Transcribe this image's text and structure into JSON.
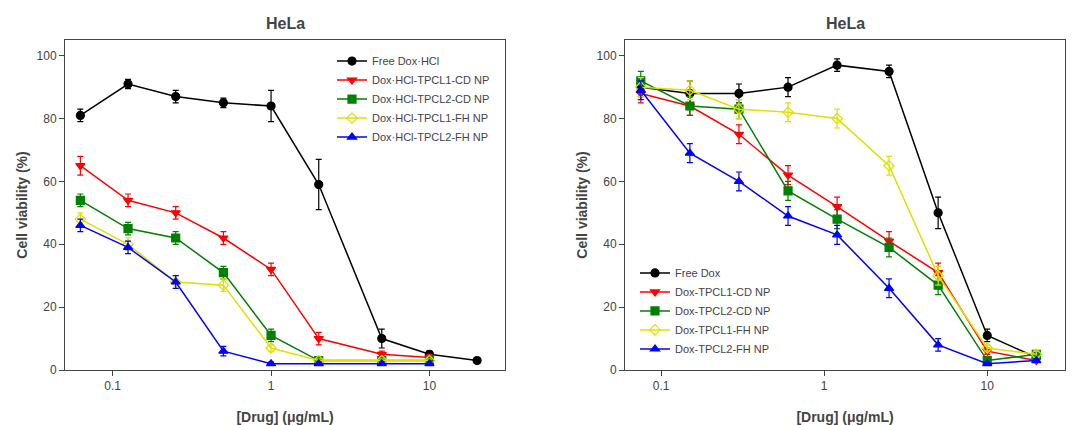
{
  "chart_data": [
    {
      "type": "line",
      "title": "HeLa",
      "xlabel": "[Drug] (μg/mL)",
      "ylabel": "Cell viability (%)",
      "log": "x",
      "grid": false,
      "legend": "upper right",
      "xlim": [
        0.05,
        30
      ],
      "ylim": [
        0,
        105
      ],
      "xticks": [
        0.1,
        1,
        10
      ],
      "yticks": [
        0,
        20,
        40,
        60,
        80,
        100
      ],
      "series": [
        {
          "name": "Free Dox·HCl",
          "color": "black",
          "marker": "circle",
          "x": [
            0.0625,
            0.125,
            0.25,
            0.5,
            1.0,
            2.0,
            5.0,
            10.0,
            20.0
          ],
          "values": [
            81,
            91,
            87,
            85,
            84,
            59,
            10,
            5,
            3
          ],
          "errors": [
            2,
            1.5,
            2,
            1.5,
            5,
            8,
            3,
            1,
            0.5
          ]
        },
        {
          "name": "Dox·HCl-TPCL1-CD NP",
          "color": "red",
          "marker": "triangle-down",
          "x": [
            0.0625,
            0.125,
            0.25,
            0.5,
            1.0,
            2.0,
            5.0,
            10.0
          ],
          "values": [
            65,
            54,
            50,
            42,
            32,
            10,
            5,
            4
          ],
          "errors": [
            3,
            2,
            2,
            2,
            2,
            2,
            1,
            1
          ]
        },
        {
          "name": "Dox·HCl-TPCL2-CD NP",
          "color": "green",
          "marker": "square",
          "x": [
            0.0625,
            0.125,
            0.25,
            0.5,
            1.0,
            2.0,
            5.0,
            10.0
          ],
          "values": [
            54,
            45,
            42,
            31,
            11,
            3,
            3,
            3
          ],
          "errors": [
            2,
            2,
            2,
            2,
            2,
            1,
            0.5,
            0.5
          ]
        },
        {
          "name": "Dox·HCl-TPCL1-FH NP",
          "color": "#e0e000",
          "marker": "diamond-open",
          "x": [
            0.0625,
            0.125,
            0.25,
            0.5,
            1.0,
            2.0,
            5.0,
            10.0
          ],
          "values": [
            48,
            40,
            28,
            27,
            7,
            3,
            3,
            3
          ],
          "errors": [
            2,
            2,
            2,
            2,
            1,
            0.5,
            0.5,
            0.5
          ]
        },
        {
          "name": "Dox·HCl-TPCL2-FH NP",
          "color": "blue",
          "marker": "triangle-up",
          "x": [
            0.0625,
            0.125,
            0.25,
            0.5,
            1.0,
            2.0,
            5.0,
            10.0
          ],
          "values": [
            46,
            39,
            28,
            6,
            2,
            2,
            2,
            2
          ],
          "errors": [
            2,
            2,
            2,
            1.5,
            0.5,
            0.5,
            0.5,
            0.5
          ]
        }
      ]
    },
    {
      "type": "line",
      "title": "HeLa",
      "xlabel": "[Drug] (μg/mL)",
      "ylabel": "Cell viability (%)",
      "log": "x",
      "grid": false,
      "legend": "lower left",
      "xlim": [
        0.06,
        30
      ],
      "ylim": [
        0,
        105
      ],
      "xticks": [
        0.1,
        1,
        10
      ],
      "yticks": [
        0,
        20,
        40,
        60,
        80,
        100
      ],
      "series": [
        {
          "name": "Free Dox",
          "color": "black",
          "marker": "circle",
          "x": [
            0.075,
            0.15,
            0.3,
            0.6,
            1.2,
            2.5,
            5.0,
            10.0,
            20.0
          ],
          "values": [
            90,
            88,
            88,
            90,
            97,
            95,
            50,
            11,
            4
          ],
          "errors": [
            3,
            4,
            3,
            3,
            2,
            2,
            5,
            2,
            1
          ]
        },
        {
          "name": "Dox-TPCL1-CD NP",
          "color": "red",
          "marker": "triangle-down",
          "x": [
            0.075,
            0.15,
            0.3,
            0.6,
            1.2,
            2.5,
            5.0,
            10.0,
            20.0
          ],
          "values": [
            88,
            84,
            75,
            62,
            52,
            41,
            31,
            6,
            3
          ],
          "errors": [
            3,
            3,
            3,
            3,
            3,
            3,
            3,
            1,
            0.5
          ]
        },
        {
          "name": "Dox-TPCL2-CD NP",
          "color": "green",
          "marker": "square",
          "x": [
            0.075,
            0.15,
            0.3,
            0.6,
            1.2,
            2.5,
            5.0,
            10.0,
            20.0
          ],
          "values": [
            92,
            84,
            83,
            57,
            48,
            39,
            27,
            3,
            5
          ],
          "errors": [
            3,
            3,
            3,
            3,
            3,
            3,
            3,
            0.5,
            1
          ]
        },
        {
          "name": "Dox-TPCL1-FH NP",
          "color": "#e0e000",
          "marker": "diamond-open",
          "x": [
            0.075,
            0.15,
            0.3,
            0.6,
            1.2,
            2.5,
            5.0,
            10.0,
            20.0
          ],
          "values": [
            90,
            89,
            83,
            82,
            80,
            65,
            30,
            7,
            5
          ],
          "errors": [
            3,
            3,
            3,
            3,
            3,
            3,
            3,
            1,
            1
          ]
        },
        {
          "name": "Dox-TPCL2-FH NP",
          "color": "blue",
          "marker": "triangle-up",
          "x": [
            0.075,
            0.15,
            0.3,
            0.6,
            1.2,
            2.5,
            5.0,
            10.0,
            20.0
          ],
          "values": [
            89,
            69,
            60,
            49,
            43,
            26,
            8,
            2,
            3
          ],
          "errors": [
            3,
            3,
            3,
            3,
            3,
            3,
            2,
            0.5,
            0.5
          ]
        }
      ]
    }
  ]
}
